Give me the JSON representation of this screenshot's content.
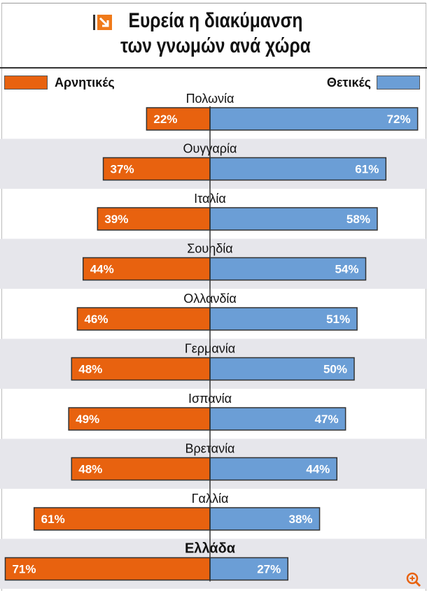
{
  "title": {
    "line1": "Ευρεία η διακύμανση",
    "line2": "των γνωμών ανά χώρα"
  },
  "legend": {
    "negative": "Αρνητικές",
    "positive": "Θετικές"
  },
  "colors": {
    "negative": "#e8620f",
    "positive": "#6b9ed6",
    "stripe": "#e6e6eb"
  },
  "chart_data": {
    "type": "bar",
    "orientation": "diverging-horizontal",
    "unit": "%",
    "categories": [
      "Πολωνία",
      "Ουγγαρία",
      "Ιταλία",
      "Σουηδία",
      "Ολλανδία",
      "Γερμανία",
      "Ισπανία",
      "Βρετανία",
      "Γαλλία",
      "Ελλάδα"
    ],
    "series": [
      {
        "name": "Αρνητικές",
        "values": [
          22,
          37,
          39,
          44,
          46,
          48,
          49,
          48,
          61,
          71
        ]
      },
      {
        "name": "Θετικές",
        "values": [
          72,
          61,
          58,
          54,
          51,
          50,
          47,
          44,
          38,
          27
        ]
      }
    ],
    "highlight": "Ελλάδα",
    "grid": false
  },
  "icons": {
    "title": "arrow-icon",
    "zoom": "zoom-in-icon"
  }
}
